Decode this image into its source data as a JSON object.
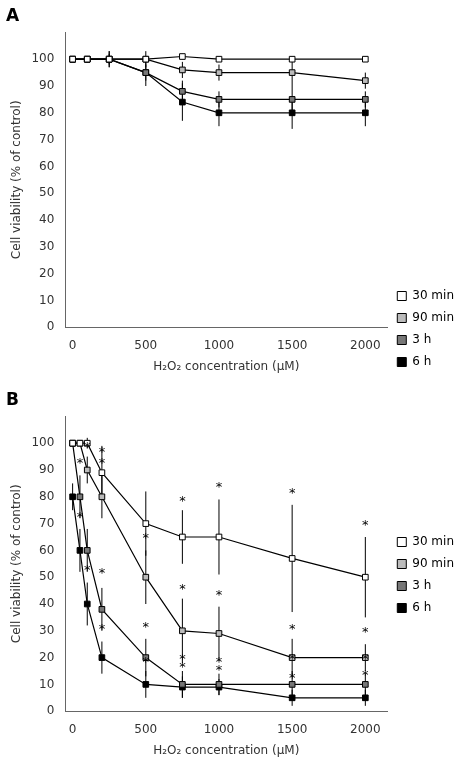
{
  "chart_data": [
    {
      "type": "line",
      "title": "A",
      "xlabel": "H₂O₂ concentration (μM)",
      "ylabel": "Cell viability (% of control)",
      "x": [
        0,
        100,
        250,
        500,
        750,
        1000,
        1500,
        2000
      ],
      "series": [
        {
          "name": "30 min",
          "color": "white",
          "values": [
            100,
            100,
            100,
            100,
            101,
            100,
            100,
            100
          ],
          "yerr": [
            0.5,
            0.5,
            0.5,
            1,
            1,
            1,
            1,
            1
          ]
        },
        {
          "name": "90 min",
          "color": "#bbbbbb",
          "values": [
            100,
            100,
            100,
            100,
            96,
            95,
            95,
            92
          ],
          "yerr": [
            0.5,
            0.5,
            2,
            3,
            3,
            3,
            5,
            3
          ]
        },
        {
          "name": "3 h",
          "color": "#777777",
          "values": [
            100,
            100,
            100,
            95,
            88,
            85,
            85,
            85
          ],
          "yerr": [
            0.5,
            0.5,
            3,
            3,
            4,
            3,
            5,
            3
          ]
        },
        {
          "name": "6 h",
          "color": "black",
          "values": [
            100,
            100,
            100,
            95,
            84,
            80,
            80,
            80
          ],
          "yerr": [
            0.5,
            0.5,
            3,
            5,
            7,
            5,
            6,
            5
          ]
        }
      ],
      "xlim": [
        -50,
        2150
      ],
      "xticks": [
        0,
        500,
        1000,
        1500,
        2000
      ],
      "ylim": [
        0,
        110
      ],
      "yticks": [
        0,
        10,
        20,
        30,
        40,
        50,
        60,
        70,
        80,
        90,
        100
      ],
      "grid": false,
      "legend": "lower right",
      "marker": "square"
    },
    {
      "type": "line",
      "title": "B",
      "xlabel": "H₂O₂ concentration (μM)",
      "ylabel": "Cell viability (% of control)",
      "x": [
        0,
        50,
        100,
        200,
        500,
        750,
        1000,
        1500,
        2000
      ],
      "series": [
        {
          "name": "30 min",
          "color": "white",
          "values": [
            100,
            100,
            100,
            89,
            70,
            65,
            65,
            57,
            50
          ],
          "yerr": [
            1,
            1,
            2,
            10,
            12,
            10,
            14,
            20,
            15
          ]
        },
        {
          "name": "90 min",
          "color": "#bbbbbb",
          "values": [
            100,
            100,
            90,
            80,
            50,
            30,
            29,
            20,
            20
          ],
          "yerr": [
            1,
            1,
            5,
            8,
            10,
            12,
            10,
            7,
            5
          ]
        },
        {
          "name": "3 h",
          "color": "#777777",
          "values": [
            100,
            80,
            60,
            38,
            20,
            10,
            10,
            10,
            10
          ],
          "yerr": [
            1,
            8,
            8,
            8,
            7,
            5,
            4,
            5,
            4
          ]
        },
        {
          "name": "6 h",
          "color": "black",
          "values": [
            80,
            60,
            40,
            20,
            10,
            9,
            9,
            5,
            5
          ],
          "yerr": [
            5,
            8,
            8,
            6,
            5,
            4,
            3,
            3,
            3
          ]
        }
      ],
      "annotations": [
        {
          "x": 200,
          "y": 95,
          "text": "*"
        },
        {
          "x": 750,
          "y": 77,
          "text": "*"
        },
        {
          "x": 1000,
          "y": 82,
          "text": "*"
        },
        {
          "x": 1500,
          "y": 80,
          "text": "*"
        },
        {
          "x": 2000,
          "y": 68,
          "text": "*"
        },
        {
          "x": 100,
          "y": 97,
          "text": "*"
        },
        {
          "x": 200,
          "y": 91,
          "text": "*"
        },
        {
          "x": 500,
          "y": 63,
          "text": "*"
        },
        {
          "x": 750,
          "y": 44,
          "text": "*"
        },
        {
          "x": 1000,
          "y": 42,
          "text": "*"
        },
        {
          "x": 1500,
          "y": 29,
          "text": "*"
        },
        {
          "x": 2000,
          "y": 28,
          "text": "*"
        },
        {
          "x": 50,
          "y": 91,
          "text": "*"
        },
        {
          "x": 200,
          "y": 50,
          "text": "*"
        },
        {
          "x": 500,
          "y": 30,
          "text": "*"
        },
        {
          "x": 750,
          "y": 18,
          "text": "*"
        },
        {
          "x": 1000,
          "y": 17,
          "text": "*"
        },
        {
          "x": 1500,
          "y": 18,
          "text": "*"
        },
        {
          "x": 2000,
          "y": 18,
          "text": "*"
        },
        {
          "x": 50,
          "y": 71,
          "text": "*"
        },
        {
          "x": 100,
          "y": 51,
          "text": "*"
        },
        {
          "x": 200,
          "y": 29,
          "text": "*"
        },
        {
          "x": 500,
          "y": 17,
          "text": "*"
        },
        {
          "x": 750,
          "y": 15,
          "text": "*"
        },
        {
          "x": 1000,
          "y": 14,
          "text": "*"
        },
        {
          "x": 1500,
          "y": 11,
          "text": "*"
        },
        {
          "x": 2000,
          "y": 12,
          "text": "*"
        }
      ],
      "xlim": [
        -50,
        2150
      ],
      "xticks": [
        0,
        500,
        1000,
        1500,
        2000
      ],
      "ylim": [
        0,
        110
      ],
      "yticks": [
        0,
        10,
        20,
        30,
        40,
        50,
        60,
        70,
        80,
        90,
        100
      ],
      "grid": false,
      "legend": "right",
      "marker": "square"
    }
  ]
}
